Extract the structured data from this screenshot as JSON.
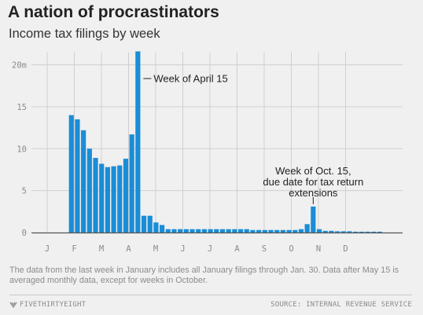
{
  "title": "A nation of procrastinators",
  "subtitle": "Income tax filings by week",
  "note": "The data from the last week in January includes all January filings through Jan. 30. Data after May 15 is averaged monthly data, except for weeks in October.",
  "footer": {
    "brand": "FIVETHIRTYEIGHT",
    "brand_icon": "fivethirtyeight-logo-icon",
    "source": "SOURCE: INTERNAL REVENUE SERVICE"
  },
  "colors": {
    "bar": "#1a8dd6",
    "grid": "#cfcfcf",
    "baseline": "#555555",
    "background": "#f0f0f0"
  },
  "chart_data": {
    "type": "bar",
    "unit": "m",
    "ylim": [
      0,
      21.5
    ],
    "grid": true,
    "y_ticks": [
      {
        "value": 0,
        "label": "0"
      },
      {
        "value": 5,
        "label": "5"
      },
      {
        "value": 10,
        "label": "10"
      },
      {
        "value": 15,
        "label": "15"
      },
      {
        "value": 20,
        "label": "20m"
      }
    ],
    "months": [
      "J",
      "F",
      "M",
      "A",
      "M",
      "J",
      "J",
      "A",
      "S",
      "O",
      "N",
      "D"
    ],
    "first_week_index": 4,
    "values": [
      14.0,
      13.5,
      12.2,
      10.0,
      8.9,
      8.2,
      7.8,
      7.9,
      8.0,
      8.8,
      11.7,
      21.6,
      2.0,
      2.0,
      1.2,
      0.9,
      0.4,
      0.4,
      0.4,
      0.4,
      0.4,
      0.4,
      0.4,
      0.4,
      0.4,
      0.4,
      0.4,
      0.4,
      0.4,
      0.4,
      0.3,
      0.3,
      0.3,
      0.3,
      0.3,
      0.3,
      0.3,
      0.3,
      0.4,
      1.0,
      3.1,
      0.4,
      0.2,
      0.2,
      0.15,
      0.15,
      0.15,
      0.1,
      0.1,
      0.1,
      0.1,
      0.1
    ],
    "annotations": [
      {
        "bar_index": 11,
        "lines": [
          "Week of April 15"
        ]
      },
      {
        "bar_index": 40,
        "lines": [
          "Week of Oct. 15,",
          "due date for tax return",
          "extensions"
        ]
      }
    ]
  }
}
